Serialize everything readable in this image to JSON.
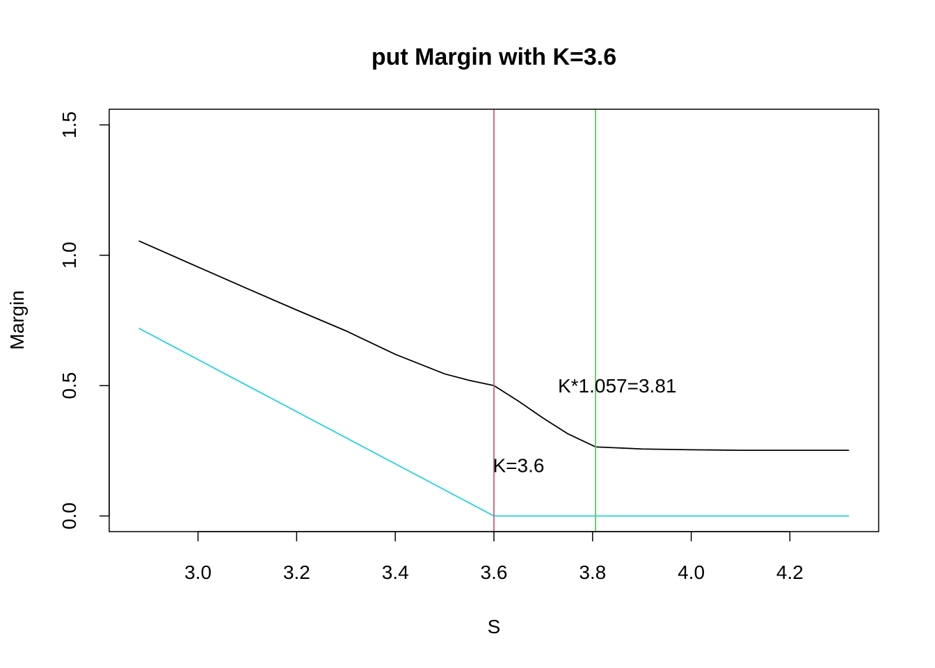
{
  "chart_data": {
    "type": "line",
    "title": "put Margin with K=3.6",
    "xlabel": "S",
    "ylabel": "Margin",
    "xlim": [
      2.82,
      4.38
    ],
    "ylim": [
      -0.06,
      1.56
    ],
    "x_ticks": [
      3.0,
      3.2,
      3.4,
      3.6,
      3.8,
      4.0,
      4.2
    ],
    "x_tick_labels": [
      "3.0",
      "3.2",
      "3.4",
      "3.6",
      "3.8",
      "4.0",
      "4.2"
    ],
    "y_ticks": [
      0.0,
      0.5,
      1.0,
      1.5
    ],
    "y_tick_labels": [
      "0.0",
      "0.5",
      "1.0",
      "1.5"
    ],
    "grid": false,
    "series": [
      {
        "color": "#000000",
        "points": [
          [
            2.88,
            1.055
          ],
          [
            3.0,
            0.955
          ],
          [
            3.1,
            0.872
          ],
          [
            3.2,
            0.79
          ],
          [
            3.3,
            0.71
          ],
          [
            3.4,
            0.62
          ],
          [
            3.5,
            0.545
          ],
          [
            3.55,
            0.52
          ],
          [
            3.6,
            0.5
          ],
          [
            3.65,
            0.44
          ],
          [
            3.7,
            0.375
          ],
          [
            3.75,
            0.315
          ],
          [
            3.806,
            0.265
          ],
          [
            3.9,
            0.257
          ],
          [
            4.0,
            0.254
          ],
          [
            4.1,
            0.252
          ],
          [
            4.2,
            0.252
          ],
          [
            4.32,
            0.252
          ]
        ]
      },
      {
        "color": "#22d3e0",
        "points": [
          [
            2.88,
            0.72
          ],
          [
            3.6,
            0.0
          ],
          [
            4.32,
            0.0
          ]
        ]
      }
    ],
    "vlines": [
      {
        "x": 3.6,
        "color": "#c06080"
      },
      {
        "x": 3.806,
        "color": "#5ec85e"
      }
    ],
    "annotations": [
      {
        "text": "K*1.057=3.81",
        "x": 3.85,
        "y": 0.5
      },
      {
        "text": "K=3.6",
        "x": 3.65,
        "y": 0.195
      }
    ]
  }
}
